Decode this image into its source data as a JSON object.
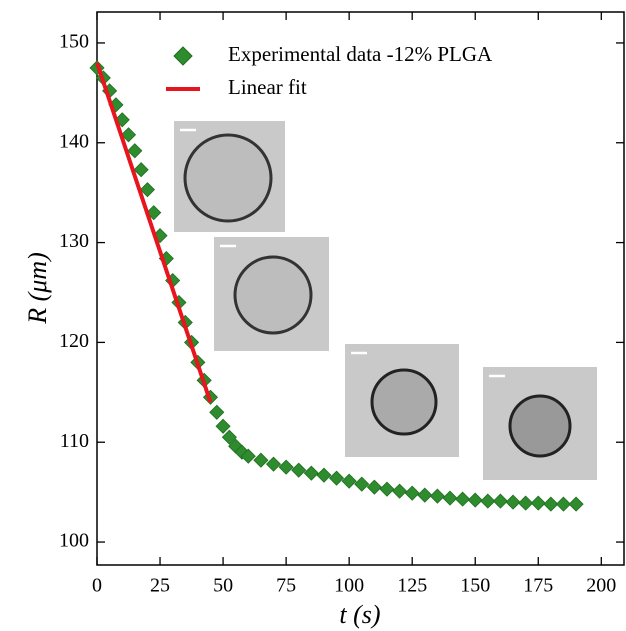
{
  "chart_data": {
    "type": "scatter",
    "xlabel": "t (s)",
    "ylabel": "R (μm)",
    "xlim": [
      0,
      209
    ],
    "ylim": [
      97.7,
      153.1
    ],
    "xticks": [
      0,
      25,
      50,
      75,
      100,
      125,
      150,
      175,
      200
    ],
    "yticks": [
      100,
      110,
      120,
      130,
      140,
      150
    ],
    "legend_position": "upper right",
    "series": [
      {
        "name": "Experimental data -12% PLGA",
        "color": "#2e8b2e",
        "marker": "diamond",
        "x": [
          0,
          2.5,
          5,
          7.5,
          10,
          12.5,
          15,
          17.5,
          20,
          22.5,
          25,
          27.5,
          30,
          32.5,
          35,
          37.5,
          40,
          42.5,
          45,
          47.5,
          50,
          52.5,
          55,
          57.5,
          60,
          65,
          70,
          75,
          80,
          85,
          90,
          95,
          100,
          105,
          110,
          115,
          120,
          125,
          130,
          135,
          140,
          145,
          150,
          155,
          160,
          165,
          170,
          175,
          180,
          185,
          190
        ],
        "values": [
          147.5,
          146.5,
          145.2,
          143.8,
          142.3,
          140.8,
          139.2,
          137.3,
          135.3,
          133,
          130.7,
          128.4,
          126.2,
          124,
          122,
          120,
          118,
          116.2,
          114.5,
          113,
          111.6,
          110.5,
          109.6,
          109,
          108.6,
          108.2,
          107.8,
          107.5,
          107.2,
          106.9,
          106.7,
          106.4,
          106.1,
          105.8,
          105.5,
          105.3,
          105.1,
          104.9,
          104.7,
          104.6,
          104.4,
          104.3,
          104.2,
          104.1,
          104.1,
          104,
          103.9,
          103.9,
          103.8,
          103.8,
          103.8
        ]
      },
      {
        "name": "Linear fit",
        "color": "#e8141e",
        "marker": "line",
        "x": [
          0,
          45
        ],
        "values": [
          148,
          114
        ]
      }
    ]
  }
}
